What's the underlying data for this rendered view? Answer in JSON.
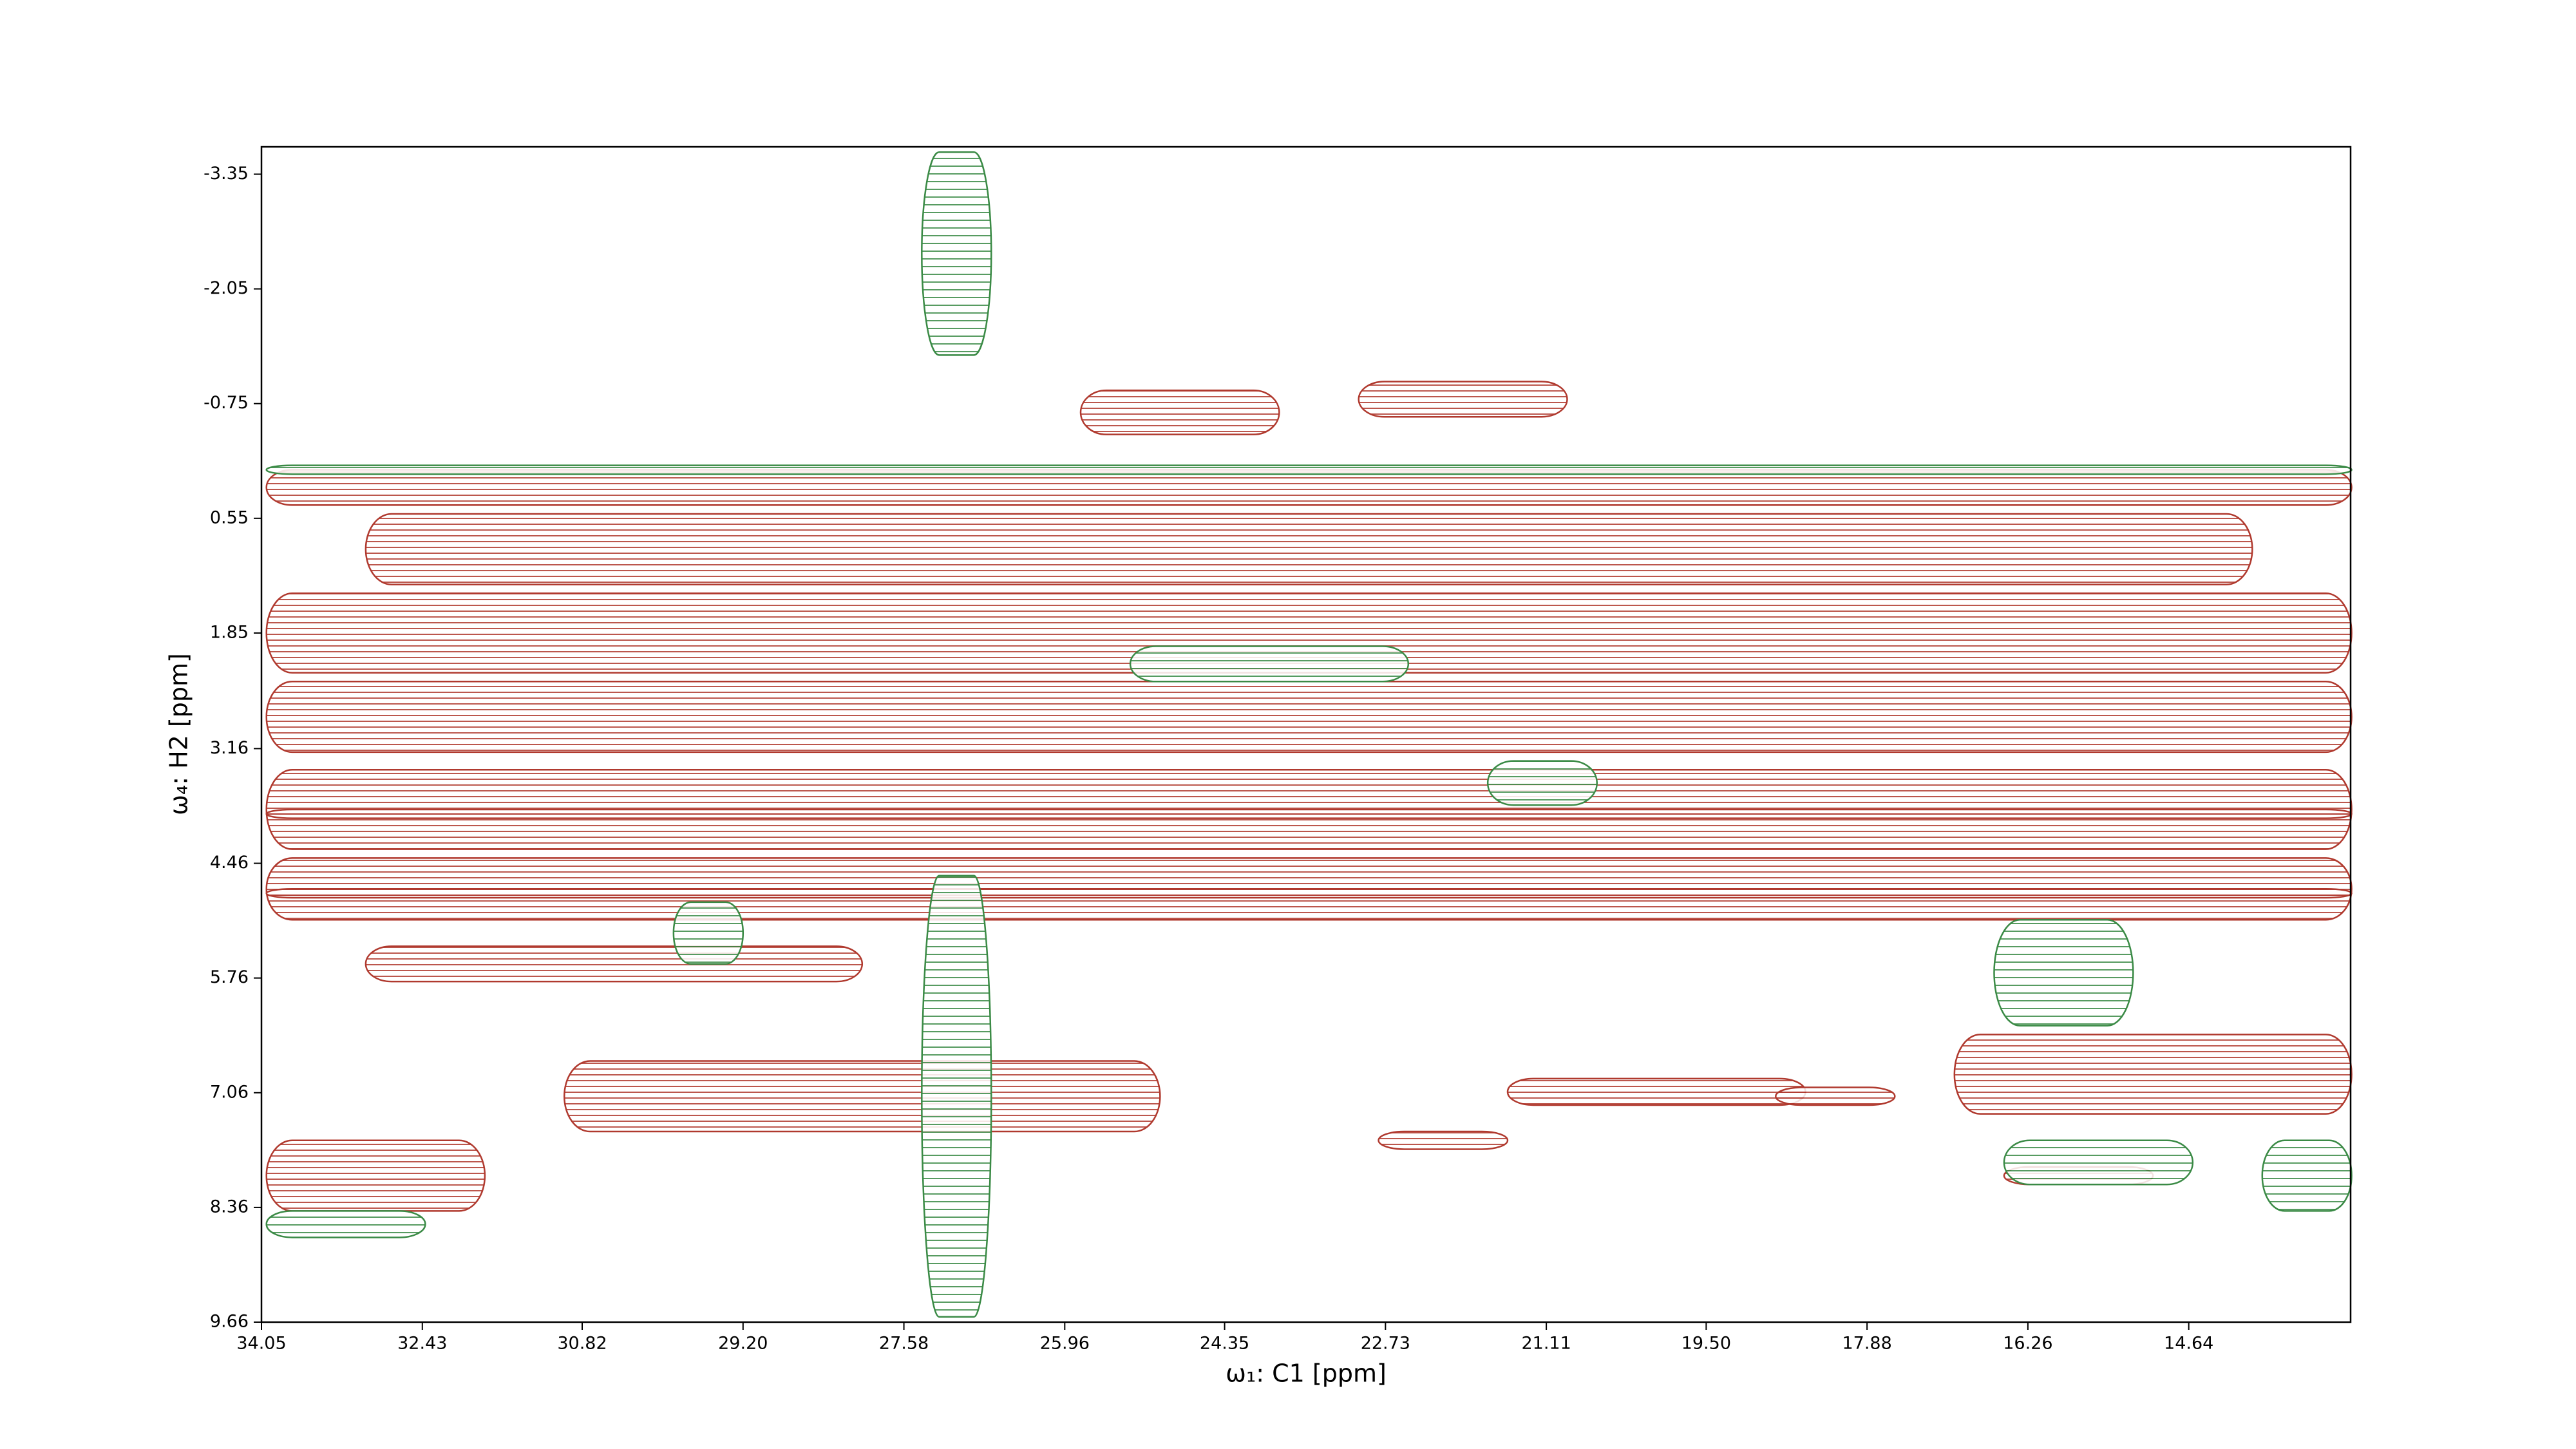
{
  "chart_data": {
    "type": "contour",
    "xlabel": "ω₁: C1 [ppm]",
    "ylabel": "ω₄: H2 [ppm]",
    "xlim": [
      34.05,
      13.01
    ],
    "ylim": [
      -3.66,
      9.66
    ],
    "xticks": [
      34.05,
      32.43,
      30.82,
      {
        "value": 29.2,
        "label": "29.20"
      },
      27.58,
      25.96,
      24.35,
      22.73,
      21.11,
      {
        "value": 19.5,
        "label": "19.50"
      },
      17.88,
      16.26,
      14.64
    ],
    "yticks": [
      -3.35,
      -2.05,
      -0.75,
      0.55,
      1.85,
      3.16,
      4.46,
      5.76,
      7.06,
      8.36,
      9.66
    ],
    "series": [
      {
        "color": "#b0392e",
        "regions": [
          {
            "x": [
              25.8,
              23.8
            ],
            "y": [
              -0.9,
              -0.4
            ]
          },
          {
            "x": [
              23.0,
              20.9
            ],
            "y": [
              -1.0,
              -0.6
            ]
          },
          {
            "x": [
              34.0,
              13.0
            ],
            "y": [
              0.0,
              0.4
            ]
          },
          {
            "x": [
              33.0,
              14.0
            ],
            "y": [
              0.5,
              1.3
            ]
          },
          {
            "x": [
              34.0,
              13.0
            ],
            "y": [
              1.4,
              2.3
            ]
          },
          {
            "x": [
              34.0,
              13.0
            ],
            "y": [
              2.4,
              3.2
            ]
          },
          {
            "x": [
              34.0,
              13.0
            ],
            "y": [
              3.4,
              4.3
            ]
          },
          {
            "x": [
              34.0,
              13.0
            ],
            "y": [
              4.4,
              5.1
            ]
          },
          {
            "x": [
              33.0,
              28.0
            ],
            "y": [
              5.4,
              5.8
            ]
          },
          {
            "x": [
              31.0,
              25.0
            ],
            "y": [
              6.7,
              7.5
            ]
          },
          {
            "x": [
              21.5,
              18.5
            ],
            "y": [
              6.9,
              7.2
            ]
          },
          {
            "x": [
              17.0,
              13.0
            ],
            "y": [
              6.4,
              7.3
            ]
          },
          {
            "x": [
              34.0,
              31.8
            ],
            "y": [
              7.6,
              8.4
            ]
          },
          {
            "x": [
              22.8,
              21.5
            ],
            "y": [
              7.5,
              7.7
            ]
          },
          {
            "x": [
              18.8,
              17.6
            ],
            "y": [
              7.0,
              7.2
            ]
          },
          {
            "x": [
              16.5,
              15.0
            ],
            "y": [
              7.9,
              8.1
            ]
          },
          {
            "x": [
              34.0,
              13.0
            ],
            "y": [
              3.85,
              3.95
            ]
          },
          {
            "x": [
              34.0,
              13.0
            ],
            "y": [
              4.75,
              4.85
            ]
          }
        ]
      },
      {
        "color": "#3a8a45",
        "regions": [
          {
            "x": [
              27.4,
              26.7
            ],
            "y": [
              -3.6,
              -1.3
            ]
          },
          {
            "x": [
              27.4,
              26.7
            ],
            "y": [
              4.6,
              9.6
            ]
          },
          {
            "x": [
              25.3,
              22.5
            ],
            "y": [
              2.0,
              2.4
            ]
          },
          {
            "x": [
              21.7,
              20.6
            ],
            "y": [
              3.3,
              3.8
            ]
          },
          {
            "x": [
              16.6,
              15.2
            ],
            "y": [
              5.1,
              6.3
            ]
          },
          {
            "x": [
              16.5,
              14.6
            ],
            "y": [
              7.6,
              8.1
            ]
          },
          {
            "x": [
              13.9,
              13.0
            ],
            "y": [
              7.6,
              8.4
            ]
          },
          {
            "x": [
              34.0,
              32.4
            ],
            "y": [
              8.4,
              8.7
            ]
          },
          {
            "x": [
              29.9,
              29.2
            ],
            "y": [
              4.9,
              5.6
            ]
          },
          {
            "x": [
              34.0,
              13.0
            ],
            "y": [
              -0.05,
              0.05
            ]
          }
        ]
      }
    ]
  }
}
